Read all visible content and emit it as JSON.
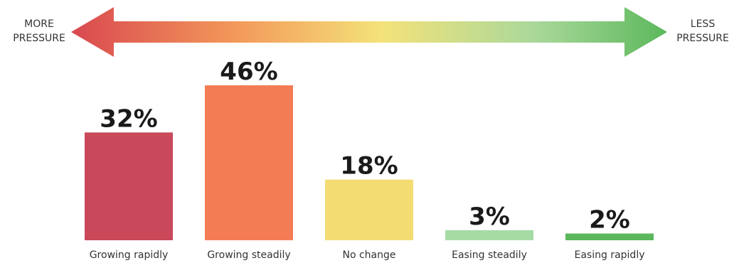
{
  "scale": {
    "left_label_line1": "MORE",
    "left_label_line2": "PRESSURE",
    "right_label_line1": "LESS",
    "right_label_line2": "PRESSURE",
    "gradient_colors": [
      "#d9484f",
      "#f39a5a",
      "#f4e27a",
      "#a9d89a",
      "#5cb85c"
    ]
  },
  "chart_data": {
    "type": "bar",
    "categories": [
      "Growing rapidly",
      "Growing steadily",
      "No change",
      "Easing steadily",
      "Easing rapidly"
    ],
    "values": [
      32,
      46,
      18,
      3,
      2
    ],
    "value_labels": [
      "32%",
      "46%",
      "18%",
      "3%",
      "2%"
    ],
    "colors": [
      "#c9485a",
      "#f47c55",
      "#f3dc72",
      "#a6dba5",
      "#5cb85c"
    ],
    "title": "",
    "xlabel": "",
    "ylabel": "",
    "ylim": [
      0,
      46
    ],
    "grid": false,
    "legend": "none"
  }
}
